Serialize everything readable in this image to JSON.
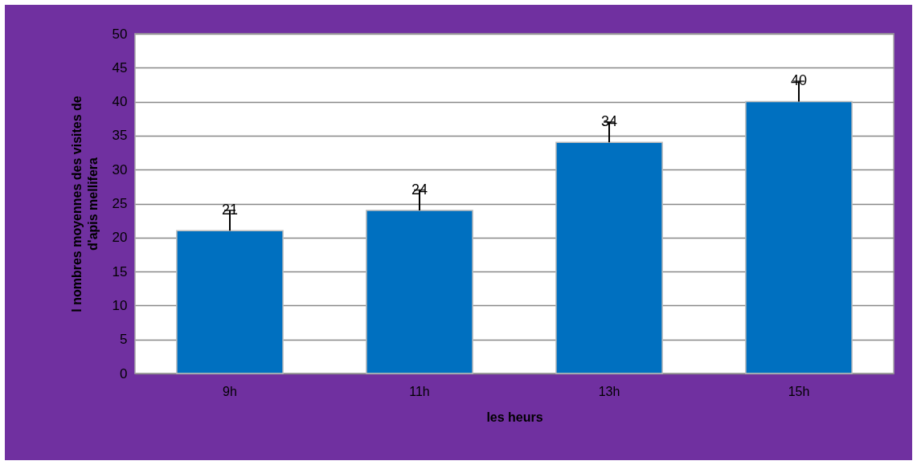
{
  "chart_data": {
    "type": "bar",
    "xlabel": "les heurs",
    "ylabel": "l nombres moyennes des visites de\nd'apis mellifera",
    "categories": [
      "9h",
      "11h",
      "13h",
      "15h"
    ],
    "values": [
      21,
      24,
      34,
      40
    ],
    "color": "#0070c0",
    "errors": [
      [
        21,
        24
      ],
      [
        24,
        27
      ],
      [
        34,
        37
      ],
      [
        40,
        43
      ]
    ],
    "ylim": [
      0,
      50
    ],
    "yticks": [
      0,
      5,
      10,
      15,
      20,
      25,
      30,
      35,
      40,
      45,
      50
    ],
    "grid": "y",
    "data_labels": true
  }
}
